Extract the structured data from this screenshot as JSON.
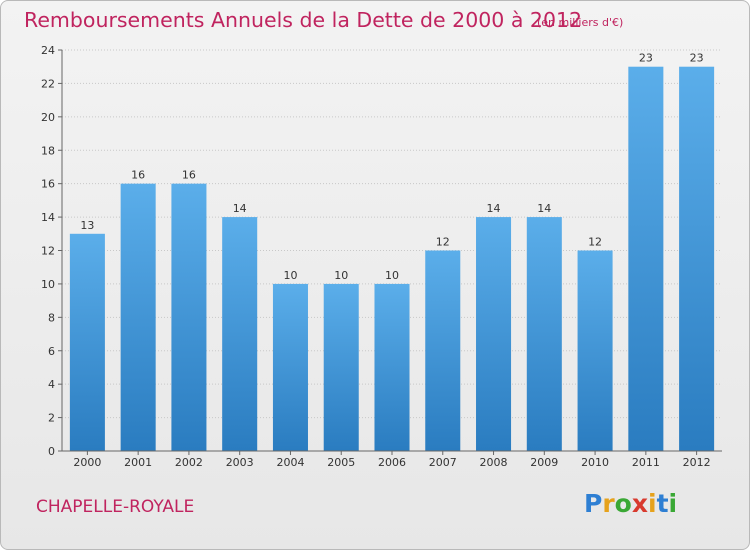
{
  "title": "Remboursements Annuels de la Dette de 2000 à 2012",
  "subtitle": "(en milliers d'€)",
  "commune": "CHAPELLE-ROYALE",
  "logo": {
    "letters": [
      "P",
      "r",
      "o",
      "x",
      "i",
      "t",
      "i"
    ],
    "colors": [
      "#2e7fd3",
      "#e6a21c",
      "#3aa835",
      "#d83a2e",
      "#e6a21c",
      "#2e7fd3",
      "#3aa835"
    ]
  },
  "colors": {
    "bar_light": "#5baeea",
    "bar_dark": "#2a7cc0",
    "title": "#c0245f",
    "grid": "#c8c8c8"
  },
  "chart_data": {
    "type": "bar",
    "categories": [
      "2000",
      "2001",
      "2002",
      "2003",
      "2004",
      "2005",
      "2006",
      "2007",
      "2008",
      "2009",
      "2010",
      "2011",
      "2012"
    ],
    "values": [
      13,
      16,
      16,
      14,
      10,
      10,
      10,
      12,
      14,
      14,
      12,
      23,
      23
    ],
    "value_labels": [
      "13",
      "16",
      "16",
      "14",
      "10",
      "10",
      "10",
      "12",
      "14",
      "14",
      "12",
      "23",
      "23"
    ],
    "ylim": [
      0,
      24
    ],
    "yticks": [
      0,
      2,
      4,
      6,
      8,
      10,
      12,
      14,
      16,
      18,
      20,
      22,
      24
    ],
    "ytick_labels": [
      "0",
      "2",
      "4",
      "6",
      "8",
      "10",
      "12",
      "14",
      "16",
      "18",
      "20",
      "22",
      "24"
    ],
    "grid": true,
    "xlabel": "",
    "ylabel": ""
  }
}
